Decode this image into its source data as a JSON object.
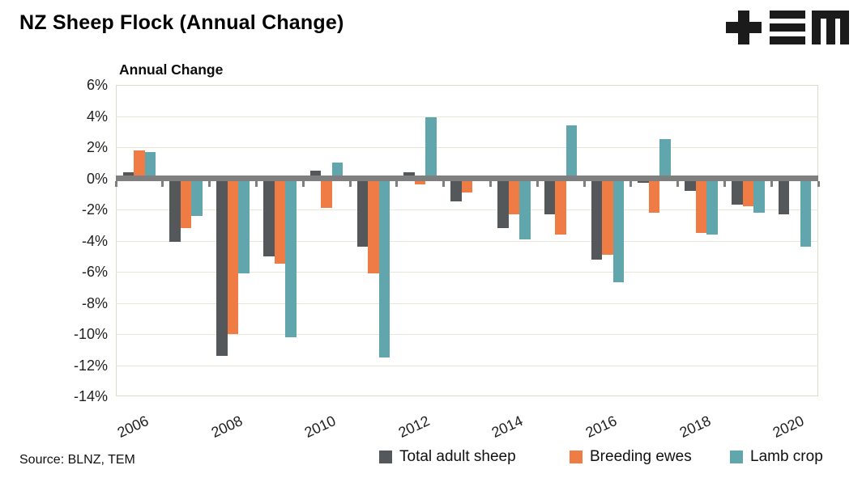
{
  "header": {
    "title": "NZ Sheep Flock (Annual Change)"
  },
  "logo": {
    "name": "TEM",
    "glyphs": [
      "plus-icon",
      "triple-bar-icon",
      "m-icon"
    ]
  },
  "chart": {
    "subtitle": "Annual Change"
  },
  "source": {
    "text": "Source: BLNZ, TEM"
  },
  "chart_data": {
    "type": "bar",
    "title": "Annual Change",
    "categories": [
      "2006",
      "2007",
      "2008",
      "2009",
      "2010",
      "2011",
      "2012",
      "2013",
      "2014",
      "2015",
      "2016",
      "2017",
      "2018",
      "2019",
      "2020"
    ],
    "series": [
      {
        "name": "Total adult sheep",
        "color": "#54585A",
        "values": [
          0.4,
          -4.1,
          -11.4,
          -5.0,
          0.5,
          -4.4,
          0.4,
          -1.5,
          -3.2,
          -2.3,
          -5.2,
          -0.3,
          -0.8,
          -1.7,
          -2.3
        ]
      },
      {
        "name": "Breeding ewes",
        "color": "#EF7B45",
        "values": [
          1.8,
          -3.2,
          -10.0,
          -5.5,
          -1.9,
          -6.1,
          -0.4,
          -0.9,
          -2.3,
          -3.6,
          -4.9,
          -2.2,
          -3.5,
          -1.8,
          0.0
        ]
      },
      {
        "name": "Lamb crop",
        "color": "#61A6AD",
        "values": [
          1.7,
          -2.4,
          -6.1,
          -10.2,
          1.0,
          -11.5,
          3.9,
          0.0,
          -3.9,
          3.4,
          -6.7,
          2.5,
          -3.6,
          -2.2,
          -4.4
        ]
      }
    ],
    "ylim": [
      -14,
      6
    ],
    "ytick_labels": [
      "6%",
      "4%",
      "2%",
      "0%",
      "-2%",
      "-4%",
      "-6%",
      "-8%",
      "-10%",
      "-12%",
      "-14%"
    ],
    "xtick_labels": [
      "2006",
      "2008",
      "2010",
      "2012",
      "2014",
      "2016",
      "2018",
      "2020"
    ],
    "grid": true,
    "legend_position": "bottom",
    "axis_color": "#7F7F7F",
    "gridline_color": "#E9E6D7",
    "plot_border_color": "#DDDAC8",
    "legend_item_lefts": [
      468,
      703,
      901
    ]
  }
}
